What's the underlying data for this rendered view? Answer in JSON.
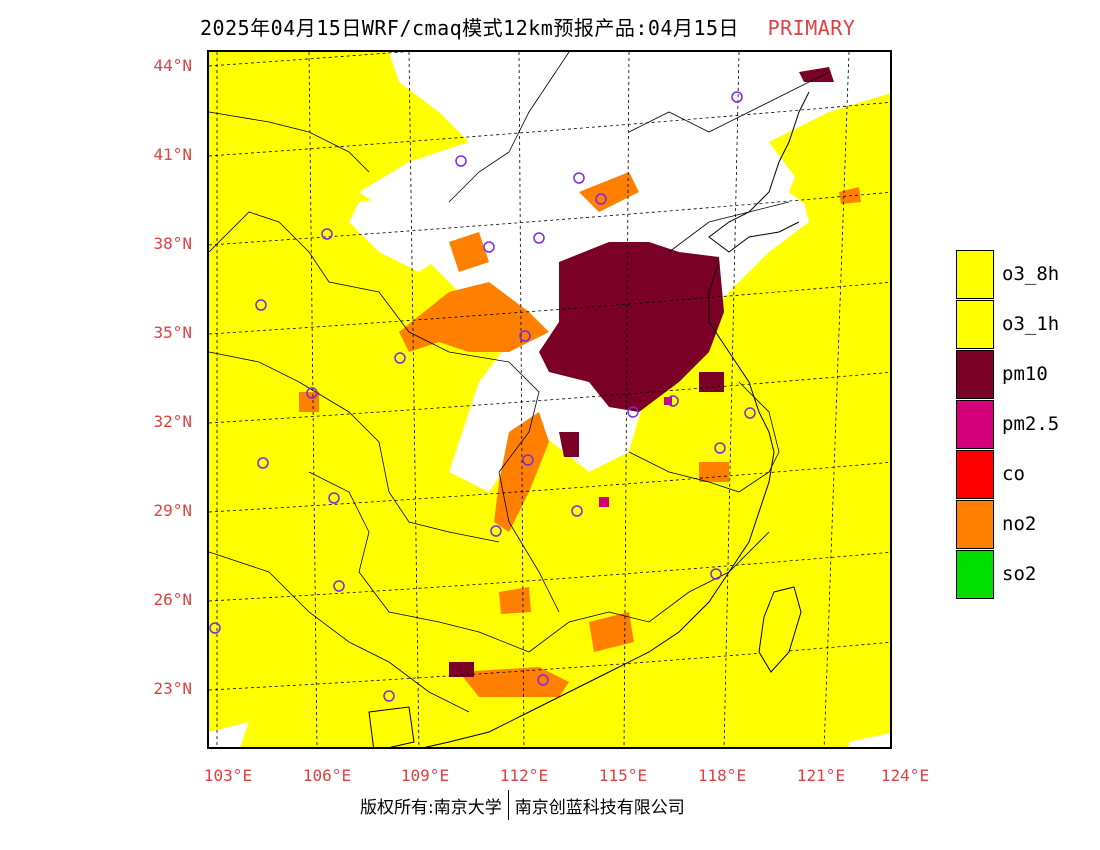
{
  "title": {
    "main": "2025年04月15日WRF/cmaq模式12km预报产品:04月15日",
    "tag": "PRIMARY"
  },
  "lat_labels": [
    "44°N",
    "41°N",
    "38°N",
    "35°N",
    "32°N",
    "29°N",
    "26°N",
    "23°N"
  ],
  "lon_labels": [
    "103°E",
    "106°E",
    "109°E",
    "112°E",
    "115°E",
    "118°E",
    "121°E",
    "124°E"
  ],
  "legend": [
    {
      "label": "o3_8h",
      "color": "#ffff00"
    },
    {
      "label": "o3_1h",
      "color": "#ffff00"
    },
    {
      "label": "pm10",
      "color": "#7a0026"
    },
    {
      "label": "pm2.5",
      "color": "#d4007a"
    },
    {
      "label": "co",
      "color": "#ff0000"
    },
    {
      "label": "no2",
      "color": "#ff7f00"
    },
    {
      "label": "so2",
      "color": "#00dd00"
    }
  ],
  "footer": {
    "left": "版权所有:南京大学",
    "right": "南京创蓝科技有限公司"
  },
  "colors": {
    "background": "#ffff00",
    "clean": "#ffffff",
    "pm10": "#7a0026",
    "no2": "#ff7f00",
    "station_marker": "#7b2be0",
    "axis_label": "#e04040"
  }
}
